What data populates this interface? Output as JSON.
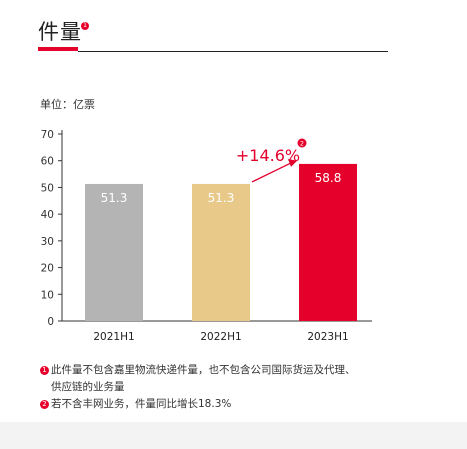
{
  "header": {
    "title": "件量",
    "title_note_marker": "1"
  },
  "unit_label": "单位：亿票",
  "chart_data": {
    "type": "bar",
    "categories": [
      "2021H1",
      "2022H1",
      "2023H1"
    ],
    "values": [
      51.3,
      51.3,
      58.8
    ],
    "value_labels": [
      "51.3",
      "51.3",
      "58.8"
    ],
    "colors": [
      "#b5b4b4",
      "#e8c98a",
      "#e4002b"
    ],
    "ylim": [
      0,
      70
    ],
    "yticks": [
      0,
      10,
      20,
      30,
      40,
      50,
      60,
      70
    ],
    "annotation": {
      "text": "+14.6%",
      "note_marker": "2",
      "color": "#e4002b"
    }
  },
  "notes": [
    {
      "marker": "1",
      "text": "此件量不包含嘉里物流快递件量，也不包含公司国际货运及代理、\n供应链的业务量"
    },
    {
      "marker": "2",
      "text": "若不含丰网业务，件量同比增长18.3%"
    }
  ]
}
